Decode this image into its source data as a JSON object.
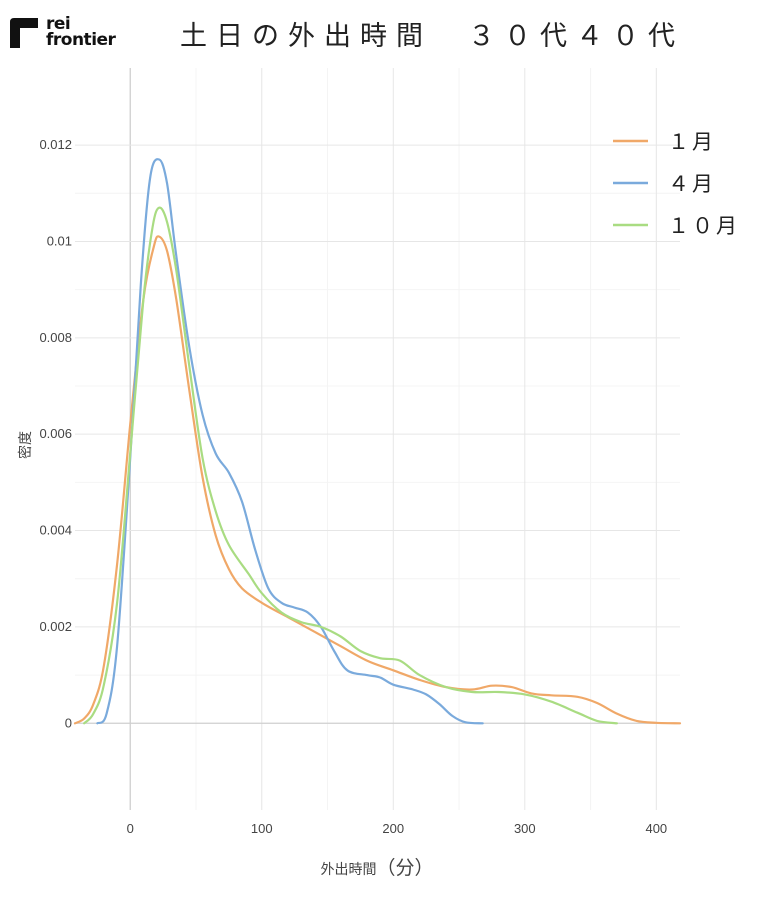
{
  "brand": {
    "logo_text_line1": "rei",
    "logo_text_line2": "frontier"
  },
  "chart_data": {
    "type": "line",
    "title": "土日の外出時間　３０代４０代",
    "xlabel": "外出時間",
    "xlabel_unit": "（分）",
    "ylabel": "密度",
    "xlim": [
      -42,
      418
    ],
    "ylim": [
      -0.0018,
      0.0136
    ],
    "x_ticks": [
      0,
      100,
      200,
      300,
      400
    ],
    "y_ticks": [
      0,
      0.002,
      0.004,
      0.006,
      0.008,
      0.01,
      0.012
    ],
    "y_tick_labels": [
      "0",
      "0.002",
      "0.004",
      "0.006",
      "0.008",
      "0.01",
      "0.012"
    ],
    "grid": true,
    "legend_position": "top-right",
    "series": [
      {
        "name": "１月",
        "color": "#f0a868",
        "points": [
          [
            -42,
            0
          ],
          [
            -35,
            0.0001
          ],
          [
            -28,
            0.0004
          ],
          [
            -20,
            0.0012
          ],
          [
            -10,
            0.0033
          ],
          [
            0,
            0.0062
          ],
          [
            10,
            0.0088
          ],
          [
            18,
            0.0099
          ],
          [
            22,
            0.0101
          ],
          [
            28,
            0.0098
          ],
          [
            35,
            0.0088
          ],
          [
            45,
            0.0069
          ],
          [
            55,
            0.0051
          ],
          [
            65,
            0.0039
          ],
          [
            75,
            0.0032
          ],
          [
            85,
            0.0028
          ],
          [
            100,
            0.0025
          ],
          [
            120,
            0.0022
          ],
          [
            140,
            0.0019
          ],
          [
            160,
            0.0016
          ],
          [
            180,
            0.0013
          ],
          [
            200,
            0.0011
          ],
          [
            220,
            0.0009
          ],
          [
            240,
            0.00075
          ],
          [
            260,
            0.0007
          ],
          [
            275,
            0.00078
          ],
          [
            290,
            0.00075
          ],
          [
            305,
            0.00062
          ],
          [
            320,
            0.00058
          ],
          [
            340,
            0.00055
          ],
          [
            355,
            0.00042
          ],
          [
            370,
            0.0002
          ],
          [
            385,
            5e-05
          ],
          [
            400,
            1e-05
          ],
          [
            418,
            0
          ]
        ]
      },
      {
        "name": "４月",
        "color": "#7aaadc",
        "points": [
          [
            -25,
            0
          ],
          [
            -18,
            0.0002
          ],
          [
            -10,
            0.0016
          ],
          [
            0,
            0.0055
          ],
          [
            8,
            0.0091
          ],
          [
            15,
            0.0113
          ],
          [
            22,
            0.0117
          ],
          [
            28,
            0.0112
          ],
          [
            35,
            0.0097
          ],
          [
            45,
            0.0078
          ],
          [
            55,
            0.0064
          ],
          [
            65,
            0.0056
          ],
          [
            75,
            0.0052
          ],
          [
            85,
            0.0046
          ],
          [
            95,
            0.0036
          ],
          [
            105,
            0.0028
          ],
          [
            115,
            0.0025
          ],
          [
            125,
            0.0024
          ],
          [
            135,
            0.0023
          ],
          [
            145,
            0.002
          ],
          [
            155,
            0.0015
          ],
          [
            165,
            0.0011
          ],
          [
            180,
            0.001
          ],
          [
            190,
            0.00095
          ],
          [
            200,
            0.0008
          ],
          [
            215,
            0.0007
          ],
          [
            225,
            0.0006
          ],
          [
            235,
            0.0004
          ],
          [
            245,
            0.00015
          ],
          [
            255,
            2e-05
          ],
          [
            268,
            0
          ]
        ]
      },
      {
        "name": "１０月",
        "color": "#a9dc82",
        "points": [
          [
            -35,
            0
          ],
          [
            -28,
            0.0002
          ],
          [
            -20,
            0.0008
          ],
          [
            -10,
            0.0025
          ],
          [
            0,
            0.0056
          ],
          [
            10,
            0.0088
          ],
          [
            17,
            0.0103
          ],
          [
            22,
            0.0107
          ],
          [
            28,
            0.0104
          ],
          [
            35,
            0.0094
          ],
          [
            45,
            0.0074
          ],
          [
            55,
            0.0055
          ],
          [
            65,
            0.0044
          ],
          [
            75,
            0.0037
          ],
          [
            90,
            0.0031
          ],
          [
            100,
            0.0027
          ],
          [
            115,
            0.0023
          ],
          [
            130,
            0.0021
          ],
          [
            145,
            0.002
          ],
          [
            160,
            0.0018
          ],
          [
            175,
            0.0015
          ],
          [
            190,
            0.00135
          ],
          [
            205,
            0.0013
          ],
          [
            220,
            0.001
          ],
          [
            240,
            0.00075
          ],
          [
            260,
            0.00065
          ],
          [
            280,
            0.00065
          ],
          [
            300,
            0.0006
          ],
          [
            320,
            0.00045
          ],
          [
            340,
            0.00022
          ],
          [
            355,
            5e-05
          ],
          [
            370,
            0
          ]
        ]
      }
    ]
  }
}
